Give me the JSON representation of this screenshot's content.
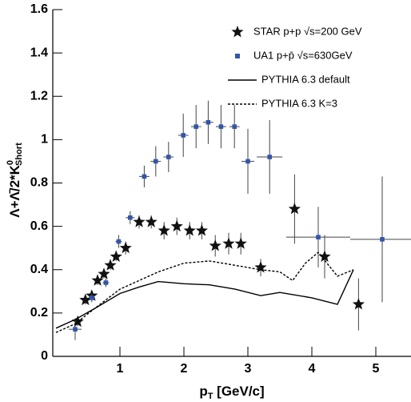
{
  "chart_data": {
    "type": "scatter",
    "xlabel": {
      "main": "p",
      "sub": "T",
      "rest": " [GeV/c]"
    },
    "ylabel": {
      "main": "Λ+Λ̄/2*K",
      "sup": "0",
      "sub": "Short"
    },
    "xlim": [
      -0.05,
      5.55
    ],
    "xticks": [
      1,
      2,
      3,
      4,
      5
    ],
    "ylim": [
      0,
      1.6
    ],
    "yticks": [
      0,
      0.2,
      0.4,
      0.6,
      0.8,
      1,
      1.2,
      1.4,
      1.6
    ],
    "legend": "upper right",
    "series": [
      {
        "name": "STAR  p+p  √s=200 GeV",
        "type": "scatter",
        "marker": "star",
        "color": "#111111",
        "x": [
          0.34,
          0.46,
          0.56,
          0.65,
          0.75,
          0.85,
          0.94,
          1.09,
          1.3,
          1.49,
          1.69,
          1.89,
          2.09,
          2.28,
          2.49,
          2.7,
          2.89,
          3.2,
          3.73,
          4.2,
          4.73
        ],
        "values": [
          0.16,
          0.26,
          0.28,
          0.35,
          0.38,
          0.42,
          0.46,
          0.5,
          0.62,
          0.62,
          0.58,
          0.6,
          0.58,
          0.58,
          0.51,
          0.52,
          0.52,
          0.41,
          0.68,
          0.46,
          0.24
        ],
        "yerr": [
          0.02,
          0.02,
          0.02,
          0.02,
          0.02,
          0.02,
          0.02,
          0.03,
          0.03,
          0.03,
          0.04,
          0.04,
          0.04,
          0.04,
          0.05,
          0.05,
          0.05,
          0.04,
          0.16,
          0.1,
          0.12
        ]
      },
      {
        "name": "UA1  p+p̄  √s=630GeV",
        "type": "scatter",
        "marker": "square",
        "color": "#3355aa",
        "x": [
          0.3,
          0.56,
          0.78,
          0.98,
          1.16,
          1.38,
          1.56,
          1.76,
          1.99,
          2.19,
          2.38,
          2.58,
          2.79,
          3.0,
          3.34,
          4.1,
          5.1
        ],
        "values": [
          0.125,
          0.27,
          0.34,
          0.53,
          0.64,
          0.83,
          0.9,
          0.92,
          1.02,
          1.06,
          1.08,
          1.06,
          1.06,
          0.9,
          0.92,
          0.55,
          0.54
        ],
        "xerr": [
          0.1,
          0.05,
          0.05,
          0.05,
          0.07,
          0.08,
          0.08,
          0.08,
          0.08,
          0.08,
          0.08,
          0.08,
          0.08,
          0.1,
          0.2,
          0.5,
          0.5
        ],
        "yerr": [
          0.05,
          0.02,
          0.02,
          0.03,
          0.03,
          0.05,
          0.07,
          0.07,
          0.1,
          0.1,
          0.1,
          0.1,
          0.1,
          0.15,
          0.17,
          0.14,
          0.29
        ]
      },
      {
        "name": "PYTHIA 6.3 default",
        "type": "line",
        "dash": false,
        "color": "#000000",
        "x": [
          0,
          0.3,
          0.6,
          1,
          1.3,
          1.6,
          2,
          2.4,
          2.8,
          3.2,
          3.5,
          4,
          4.4,
          4.65
        ],
        "values": [
          0.13,
          0.17,
          0.22,
          0.29,
          0.32,
          0.345,
          0.335,
          0.33,
          0.31,
          0.28,
          0.295,
          0.27,
          0.24,
          0.4
        ]
      },
      {
        "name": "PYTHIA 6.3 K=3",
        "type": "line",
        "dash": true,
        "color": "#000000",
        "x": [
          0,
          0.3,
          0.6,
          1,
          1.3,
          1.6,
          2,
          2.4,
          2.8,
          3.2,
          3.5,
          3.7,
          3.9,
          4.1,
          4.4,
          4.65
        ],
        "values": [
          0.11,
          0.15,
          0.22,
          0.31,
          0.35,
          0.39,
          0.43,
          0.44,
          0.42,
          0.4,
          0.39,
          0.35,
          0.43,
          0.48,
          0.37,
          0.4
        ]
      }
    ]
  }
}
